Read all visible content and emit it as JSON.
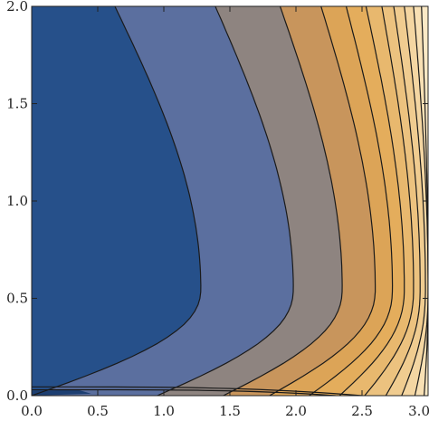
{
  "chart_data": {
    "type": "contour",
    "title": "",
    "xlabel": "",
    "ylabel": "",
    "xlim": [
      0,
      3
    ],
    "ylim": [
      0,
      2
    ],
    "x_ticks": [
      "0.0",
      "0.5",
      "1.0",
      "1.5",
      "2.0",
      "2.5",
      "3.0"
    ],
    "y_ticks": [
      "0.0",
      "0.5",
      "1.0",
      "1.5",
      "2.0"
    ],
    "x_tick_values": [
      0,
      0.5,
      1.0,
      1.5,
      2.0,
      2.5,
      3.0
    ],
    "y_tick_values": [
      0,
      0.5,
      1.0,
      1.5,
      2.0
    ],
    "grid": false,
    "band_colors": [
      "#26508a",
      "#5b6f9f",
      "#8e8480",
      "#c8955c",
      "#dca457",
      "#e4ad5c",
      "#e8b86e",
      "#ecc27f",
      "#f0cc90",
      "#f4d6a2",
      "#f8e0b4",
      "#fbe9c6"
    ],
    "contour_lines": [
      {
        "top_x": 0.63,
        "bulge_x": 1.28,
        "bottom_x": 0.0
      },
      {
        "top_x": 1.39,
        "bulge_x": 1.98,
        "bottom_x": 0.95
      },
      {
        "top_x": 1.88,
        "bulge_x": 2.35,
        "bottom_x": 1.45
      },
      {
        "top_x": 2.19,
        "bulge_x": 2.6,
        "bottom_x": 1.8
      },
      {
        "top_x": 2.38,
        "bulge_x": 2.73,
        "bottom_x": 2.1
      },
      {
        "top_x": 2.53,
        "bulge_x": 2.82,
        "bottom_x": 2.33
      },
      {
        "top_x": 2.65,
        "bulge_x": 2.89,
        "bottom_x": 2.52
      },
      {
        "top_x": 2.74,
        "bulge_x": 2.94,
        "bottom_x": 2.68
      },
      {
        "top_x": 2.82,
        "bulge_x": 2.98,
        "bottom_x": 2.8
      },
      {
        "top_x": 2.89,
        "bulge_x": 3.0,
        "bottom_x": 2.9
      },
      {
        "top_x": 2.95,
        "bulge_x": 3.0,
        "bottom_x": 2.97
      }
    ],
    "bulge_y": 0.55
  }
}
